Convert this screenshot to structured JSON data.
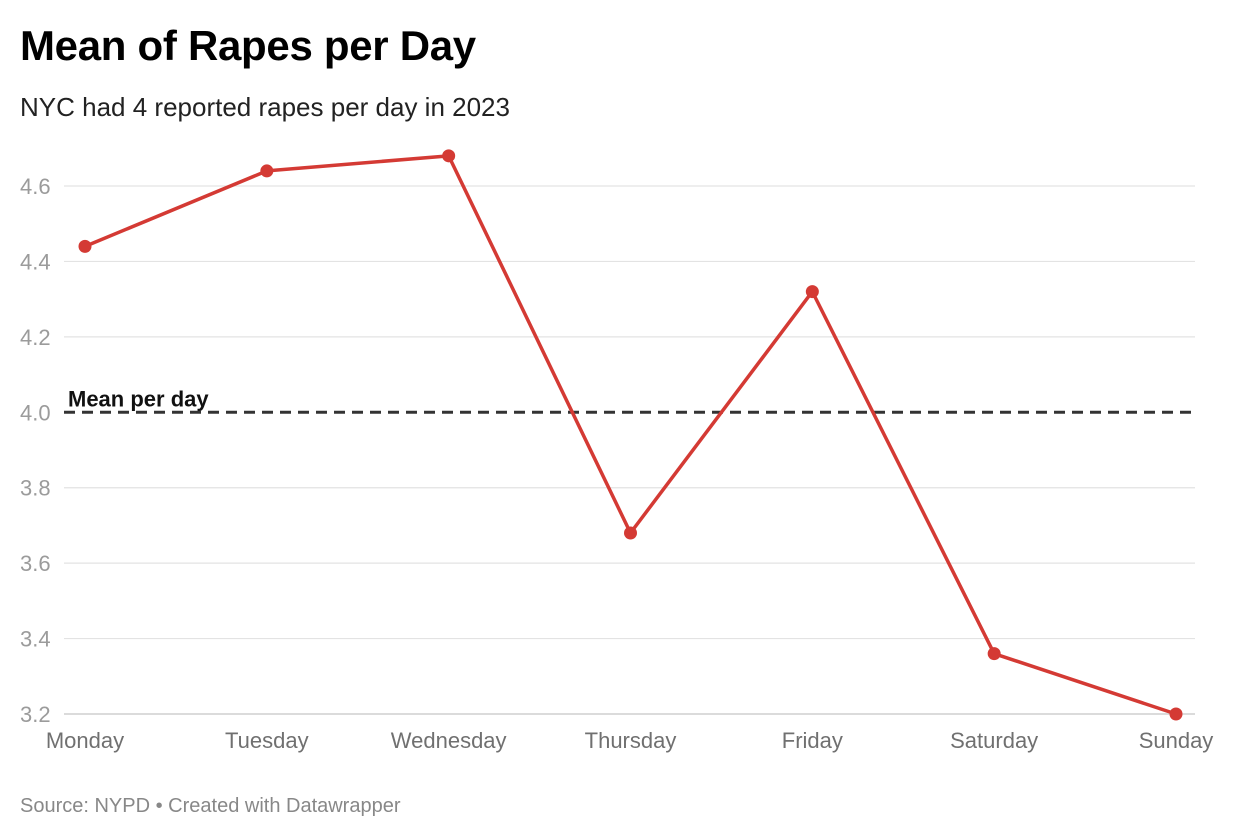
{
  "header": {
    "title": "Mean of Rapes per Day",
    "subtitle": "NYC had 4 reported rapes per day in 2023"
  },
  "footer": {
    "source": "Source: NYPD • Created with Datawrapper"
  },
  "chart_data": {
    "type": "line",
    "title": "Mean of Rapes per Day",
    "subtitle": "NYC had 4 reported rapes per day in 2023",
    "xlabel": "",
    "ylabel": "",
    "categories": [
      "Monday",
      "Tuesday",
      "Wednesday",
      "Thursday",
      "Friday",
      "Saturday",
      "Sunday"
    ],
    "series": [
      {
        "values": [
          4.44,
          4.64,
          4.68,
          3.68,
          4.32,
          3.36,
          3.2
        ],
        "color": "#d43a34"
      }
    ],
    "y_ticks": [
      "3.2",
      "3.4",
      "3.6",
      "3.8",
      "4.0",
      "4.2",
      "4.4",
      "4.6"
    ],
    "ylim": [
      3.2,
      4.6
    ],
    "grid": "horizontal",
    "reference_line": {
      "value": 4.0,
      "label": "Mean per day",
      "style": "dashed",
      "color": "#333333"
    }
  }
}
